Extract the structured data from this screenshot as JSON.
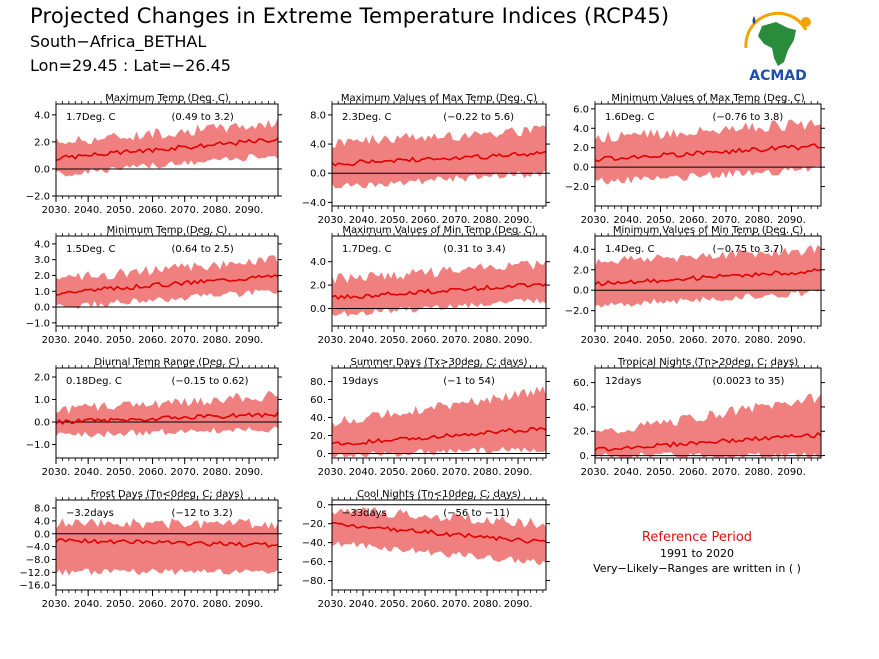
{
  "header": {
    "title": "Projected Changes in Extreme Temperature Indices (RCP45)",
    "location": "South−Africa_BETHAL",
    "coords": "Lon=29.45 : Lat=−26.45"
  },
  "logo": {
    "name": "ACMAD",
    "colors": [
      "#2a8c3a",
      "#f2a400",
      "#1e4fa8",
      "#cc2222"
    ]
  },
  "reference": {
    "title": "Reference Period",
    "years": "1991 to 2020",
    "note": "Very−Likely−Ranges are written in ( )"
  },
  "colors": {
    "band": "#f08080",
    "line": "#e00000",
    "zero": "#000000"
  },
  "chart_data": [
    {
      "type": "area",
      "title": "Maximum Temp (Deg. C)",
      "value_label": "1.7Deg. C",
      "range_label": "(0.49 to 3.2)",
      "x": [
        2030,
        2099
      ],
      "xticks": [
        "2030.",
        "2040.",
        "2050.",
        "2060.",
        "2070.",
        "2080.",
        "2090."
      ],
      "ylim": [
        -2,
        4.8
      ],
      "yticks": [
        "−2.0",
        "0.0",
        "2.0",
        "4.0"
      ],
      "ytick_values": [
        -2,
        0,
        2,
        4
      ],
      "trend": [
        0.8,
        2.2
      ],
      "band_low": [
        -0.4,
        1.0
      ],
      "band_high": [
        2.0,
        3.4
      ]
    },
    {
      "type": "area",
      "title": "Maximum Values of Max Temp (Deg. C)",
      "value_label": "2.3Deg. C",
      "range_label": "(−0.22 to 5.6)",
      "x": [
        2030,
        2099
      ],
      "xticks": [
        "2030.",
        "2040.",
        "2050.",
        "2060.",
        "2070.",
        "2080.",
        "2090."
      ],
      "ylim": [
        -4.5,
        9.5
      ],
      "yticks": [
        "−4.0",
        "0.0",
        "4.0",
        "8.0"
      ],
      "ytick_values": [
        -4,
        0,
        4,
        8
      ],
      "trend": [
        1.3,
        2.7
      ],
      "band_low": [
        -1.8,
        0.0
      ],
      "band_high": [
        4.2,
        6.0
      ]
    },
    {
      "type": "area",
      "title": "Minimum Values of Max Temp (Deg. C)",
      "value_label": "1.6Deg. C",
      "range_label": "(−0.76 to 3.8)",
      "x": [
        2030,
        2099
      ],
      "xticks": [
        "2030.",
        "2040.",
        "2050.",
        "2060.",
        "2070.",
        "2080.",
        "2090."
      ],
      "ylim": [
        -4.0,
        6.5
      ],
      "yticks": [
        "−2.0",
        "0.0",
        "2.0",
        "4.0",
        "6.0"
      ],
      "ytick_values": [
        -2,
        0,
        2,
        4,
        6
      ],
      "trend": [
        0.8,
        2.2
      ],
      "band_low": [
        -1.5,
        -0.2
      ],
      "band_high": [
        3.0,
        4.5
      ]
    },
    {
      "type": "area",
      "title": "Minimum Temp (Deg. C)",
      "value_label": "1.5Deg. C",
      "range_label": "(0.64 to 2.5)",
      "x": [
        2030,
        2099
      ],
      "xticks": [
        "2030.",
        "2040.",
        "2050.",
        "2060.",
        "2070.",
        "2080.",
        "2090."
      ],
      "ylim": [
        -1.2,
        4.5
      ],
      "yticks": [
        "−1.0",
        "0.0",
        "1.0",
        "2.0",
        "3.0",
        "4.0"
      ],
      "ytick_values": [
        -1,
        0,
        1,
        2,
        3,
        4
      ],
      "trend": [
        0.9,
        2.0
      ],
      "band_low": [
        0.0,
        1.0
      ],
      "band_high": [
        1.8,
        3.0
      ]
    },
    {
      "type": "area",
      "title": "Maximum Values of Min Temp (Deg. C)",
      "value_label": "1.7Deg. C",
      "range_label": "(0.31 to 3.4)",
      "x": [
        2030,
        2099
      ],
      "xticks": [
        "2030.",
        "2040.",
        "2050.",
        "2060.",
        "2070.",
        "2080.",
        "2090."
      ],
      "ylim": [
        -1.5,
        6.2
      ],
      "yticks": [
        "0.0",
        "2.0",
        "4.0"
      ],
      "ytick_values": [
        0,
        2,
        4
      ],
      "trend": [
        0.9,
        2.1
      ],
      "band_low": [
        -0.5,
        0.7
      ],
      "band_high": [
        2.5,
        3.8
      ]
    },
    {
      "type": "area",
      "title": "Minimum Values of Min Temp (Deg. C)",
      "value_label": "1.4Deg. C",
      "range_label": "(−0.75 to 3.7)",
      "x": [
        2030,
        2099
      ],
      "xticks": [
        "2030.",
        "2040.",
        "2050.",
        "2060.",
        "2070.",
        "2080.",
        "2090."
      ],
      "ylim": [
        -3.5,
        5.3
      ],
      "yticks": [
        "−2.0",
        "0.0",
        "2.0",
        "4.0"
      ],
      "ytick_values": [
        -2,
        0,
        2,
        4
      ],
      "trend": [
        0.6,
        1.9
      ],
      "band_low": [
        -1.5,
        -0.2
      ],
      "band_high": [
        2.8,
        4.0
      ]
    },
    {
      "type": "area",
      "title": "Diurnal Temp Range (Deg. C)",
      "value_label": "0.18Deg. C",
      "range_label": "(−0.15 to 0.62)",
      "x": [
        2030,
        2099
      ],
      "xticks": [
        "2030.",
        "2040.",
        "2050.",
        "2060.",
        "2070.",
        "2080.",
        "2090."
      ],
      "ylim": [
        -1.6,
        2.4
      ],
      "yticks": [
        "−1.0",
        "0.0",
        "1.0",
        "2.0"
      ],
      "ytick_values": [
        -1,
        0,
        1,
        2
      ],
      "trend": [
        0.0,
        0.35
      ],
      "band_low": [
        -0.6,
        -0.3
      ],
      "band_high": [
        0.5,
        1.2
      ]
    },
    {
      "type": "area",
      "title": "Summer Days (Tx>30deg. C; days)",
      "value_label": "19days",
      "range_label": "(−1 to 54)",
      "x": [
        2030,
        2099
      ],
      "xticks": [
        "2030.",
        "2040.",
        "2050.",
        "2060.",
        "2070.",
        "2080.",
        "2090."
      ],
      "ylim": [
        -5,
        95
      ],
      "yticks": [
        "0.",
        "20.",
        "40.",
        "60.",
        "80."
      ],
      "ytick_values": [
        0,
        20,
        40,
        60,
        80
      ],
      "trend": [
        10,
        28
      ],
      "band_low": [
        -2,
        5
      ],
      "band_high": [
        35,
        70
      ]
    },
    {
      "type": "area",
      "title": "Tropical Nights (Tn>20deg. C; days)",
      "value_label": "12days",
      "range_label": "(0.0023 to 35)",
      "x": [
        2030,
        2099
      ],
      "xticks": [
        "2030.",
        "2040.",
        "2050.",
        "2060.",
        "2070.",
        "2080.",
        "2090."
      ],
      "ylim": [
        -2,
        72
      ],
      "yticks": [
        "0.",
        "20.",
        "40.",
        "60."
      ],
      "ytick_values": [
        0,
        20,
        40,
        60
      ],
      "trend": [
        5,
        17
      ],
      "band_low": [
        0,
        0
      ],
      "band_high": [
        18,
        48
      ]
    },
    {
      "type": "area",
      "title": "Frost Days (Tn<0deg. C; days)",
      "value_label": "−3.2days",
      "range_label": "(−12 to 3.2)",
      "x": [
        2030,
        2099
      ],
      "xticks": [
        "2030.",
        "2040.",
        "2050.",
        "2060.",
        "2070.",
        "2080.",
        "2090."
      ],
      "ylim": [
        -17.5,
        10.5
      ],
      "yticks": [
        "−16.0",
        "−12.0",
        "−8.0",
        "−4.0",
        "0.0",
        "4.0",
        "8.0"
      ],
      "ytick_values": [
        -16,
        -12,
        -8,
        -4,
        0,
        4,
        8
      ],
      "trend": [
        -2.0,
        -3.5
      ],
      "band_low": [
        -12.0,
        -12.0
      ],
      "band_high": [
        3.2,
        3.2
      ]
    },
    {
      "type": "area",
      "title": "Cool Nights (Tn<10deg. C; days)",
      "value_label": "−33days",
      "range_label": "(−56 to −11)",
      "x": [
        2030,
        2099
      ],
      "xticks": [
        "2030.",
        "2040.",
        "2050.",
        "2060.",
        "2070.",
        "2080.",
        "2090."
      ],
      "ylim": [
        -90,
        5
      ],
      "yticks": [
        "0.",
        "−20.",
        "−40.",
        "−60.",
        "−80."
      ],
      "ytick_values": [
        0,
        -20,
        -40,
        -60,
        -80
      ],
      "trend": [
        -20,
        -40
      ],
      "band_low": [
        -40,
        -62
      ],
      "band_high": [
        -5,
        -20
      ]
    }
  ]
}
